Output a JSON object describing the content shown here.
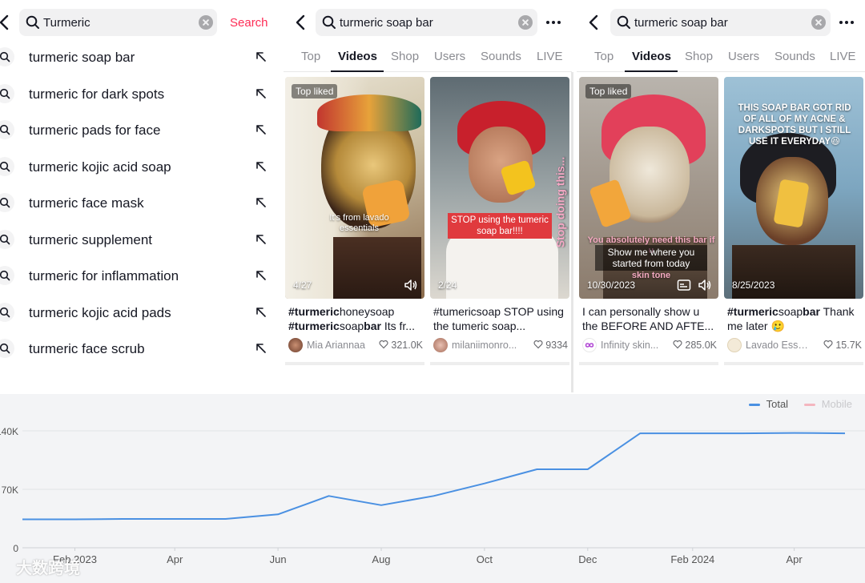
{
  "suggest_panel": {
    "query": "Turmeric",
    "search_label": "Search",
    "suggestions": [
      "turmeric soap bar",
      "turmeric for dark spots",
      "turmeric pads for face",
      "turmeric kojic acid soap",
      "turmeric face mask",
      "turmeric supplement",
      "turmeric for inflammation",
      "turmeric kojic acid pads",
      "turmeric face scrub"
    ]
  },
  "results_panels": [
    {
      "query": "turmeric soap bar",
      "tabs": [
        "Top",
        "Videos",
        "Shop",
        "Users",
        "Sounds",
        "LIVE"
      ],
      "active_tab": "Videos",
      "videos": [
        {
          "badge": "Top liked",
          "overlay": "It's from lavado essentials",
          "date": "4/27",
          "caption_bold_1": "#turmeric",
          "caption_plain_1": "honeysoap",
          "caption_bold_2": "#turmeric",
          "caption_plain_2": "soap",
          "caption_bold_3": "bar",
          "caption_tail": " Its fr...",
          "author": "Mia Ariannaa",
          "likes": "321.0K"
        },
        {
          "overlay_red": "STOP using the tumeric soap bar!!!!",
          "overlay_vertical": "Stop doing this...",
          "date": "2/24",
          "caption": "#tumericsoap STOP using the tumeric soap...",
          "author": "milaniimonro...",
          "likes": "9334"
        }
      ]
    },
    {
      "query": "turmeric soap bar",
      "tabs": [
        "Top",
        "Videos",
        "Shop",
        "Users",
        "Sounds",
        "LIVE"
      ],
      "active_tab": "Videos",
      "videos": [
        {
          "badge": "Top liked",
          "overlay_top": "You absolutely need this bar if u",
          "overlay_dark": "Show me where you started from today",
          "overlay_bottom": "skin tone",
          "date": "10/30/2023",
          "caption": "I can personally show u the BEFORE AND AFTE...",
          "author": "Infinity skin...",
          "likes": "285.0K"
        },
        {
          "overlay": "THIS SOAP BAR GOT RID OF ALL OF MY ACNE & DARKSPOTS BUT I STILL USE IT EVERYDAY😆",
          "date": "8/25/2023",
          "caption_bold_1": "#turmeric",
          "caption_plain_1": "soap",
          "caption_bold_2": "bar",
          "caption_tail": " Thank me later 🥲",
          "author": "Lavado Essen...",
          "likes": "15.7K"
        }
      ]
    }
  ],
  "chart_data": {
    "type": "line",
    "title": "",
    "xlabel": "",
    "ylabel": "",
    "x_tick_labels": [
      "Feb 2023",
      "Apr",
      "Jun",
      "Aug",
      "Oct",
      "Dec",
      "Feb 2024",
      "Apr"
    ],
    "y_tick_labels": [
      "0",
      "70K",
      "140K"
    ],
    "ylim": [
      0,
      140000
    ],
    "legend": [
      "Total",
      "Mobile"
    ],
    "legend_position": "top-right",
    "grid": true,
    "series": [
      {
        "name": "Total",
        "color": "#4a90e2",
        "x": [
          "2023-01-01",
          "2023-02-01",
          "2023-03-01",
          "2023-04-01",
          "2023-05-01",
          "2023-06-01",
          "2023-07-01",
          "2023-08-01",
          "2023-09-01",
          "2023-10-01",
          "2023-11-01",
          "2023-12-01",
          "2024-01-01",
          "2024-02-01",
          "2024-03-01",
          "2024-04-01",
          "2024-05-01"
        ],
        "values": [
          34000,
          34000,
          34500,
          34500,
          34500,
          40000,
          62000,
          51000,
          62000,
          77000,
          94000,
          94000,
          137000,
          137000,
          137000,
          137500,
          137000
        ]
      },
      {
        "name": "Mobile",
        "color": "#f4b6bf",
        "x": [],
        "values": []
      }
    ]
  },
  "watermark": "大数跨境",
  "colors": {
    "accent": "#fe2c55",
    "line": "#4a90e2"
  }
}
